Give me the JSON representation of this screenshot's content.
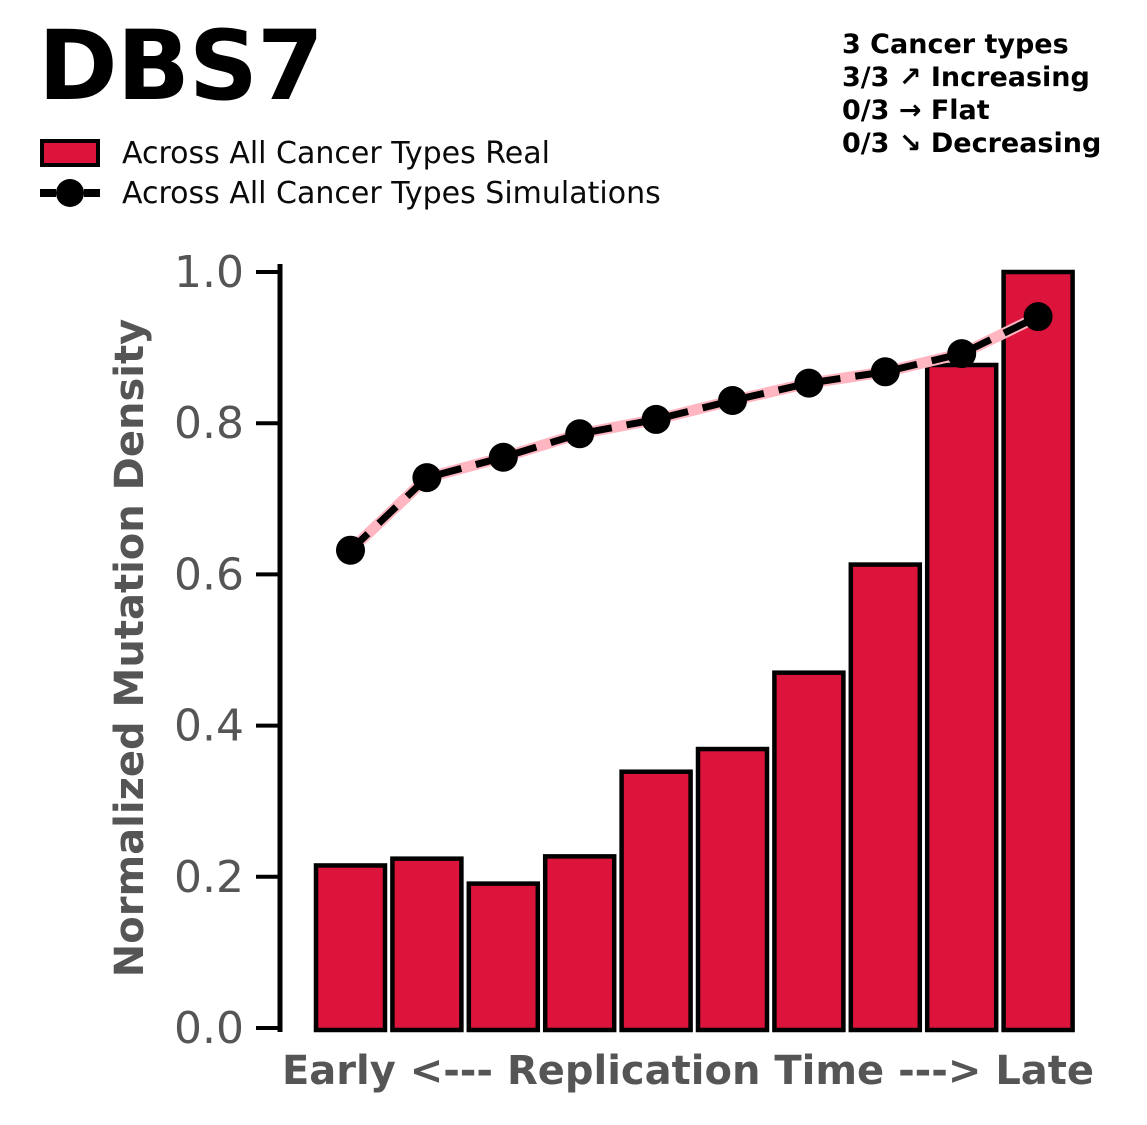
{
  "title": "DBS7",
  "legend": {
    "items": [
      {
        "label": "Across All Cancer Types Real",
        "marker": "bar-swatch",
        "color": "#DC143C"
      },
      {
        "label": "Across All Cancer Types Simulations",
        "marker": "dashed-line-dot",
        "color": "#000000"
      }
    ]
  },
  "stats": {
    "lines": [
      "3 Cancer types",
      "3/3 ↗ Increasing",
      "0/3 → Flat",
      "0/3 ↘ Decreasing"
    ]
  },
  "chart_data": {
    "type": "bar",
    "title": "DBS7",
    "xlabel": "Early <--- Replication Time ---> Late",
    "ylabel": "Normalized Mutation Density",
    "ylim": [
      0.0,
      1.0
    ],
    "yticks": [
      0.0,
      0.2,
      0.4,
      0.6,
      0.8,
      1.0
    ],
    "ytick_labels": [
      "0.0",
      "0.2",
      "0.4",
      "0.6",
      "0.8",
      "1.0"
    ],
    "x_bins": 10,
    "grid": false,
    "legend_position": "top-left",
    "series": [
      {
        "name": "Across All Cancer Types Real",
        "type": "bar",
        "fill": "#DC143C",
        "edge": "#000000",
        "values": [
          0.215,
          0.224,
          0.191,
          0.227,
          0.339,
          0.369,
          0.47,
          0.613,
          0.877,
          1.0
        ]
      },
      {
        "name": "Across All Cancer Types Simulations",
        "type": "line",
        "line_style": "dashed",
        "color": "#000000",
        "underlay_color": "#FFB6C1",
        "marker": "circle",
        "values": [
          0.632,
          0.728,
          0.755,
          0.786,
          0.805,
          0.83,
          0.853,
          0.868,
          0.892,
          0.941
        ]
      }
    ]
  },
  "colors": {
    "bar_fill": "#DC143C",
    "bar_edge": "#000000",
    "sim_line": "#000000",
    "sim_underlay": "#FFB6C1",
    "axis_text": "#555555",
    "spine": "#000000"
  }
}
